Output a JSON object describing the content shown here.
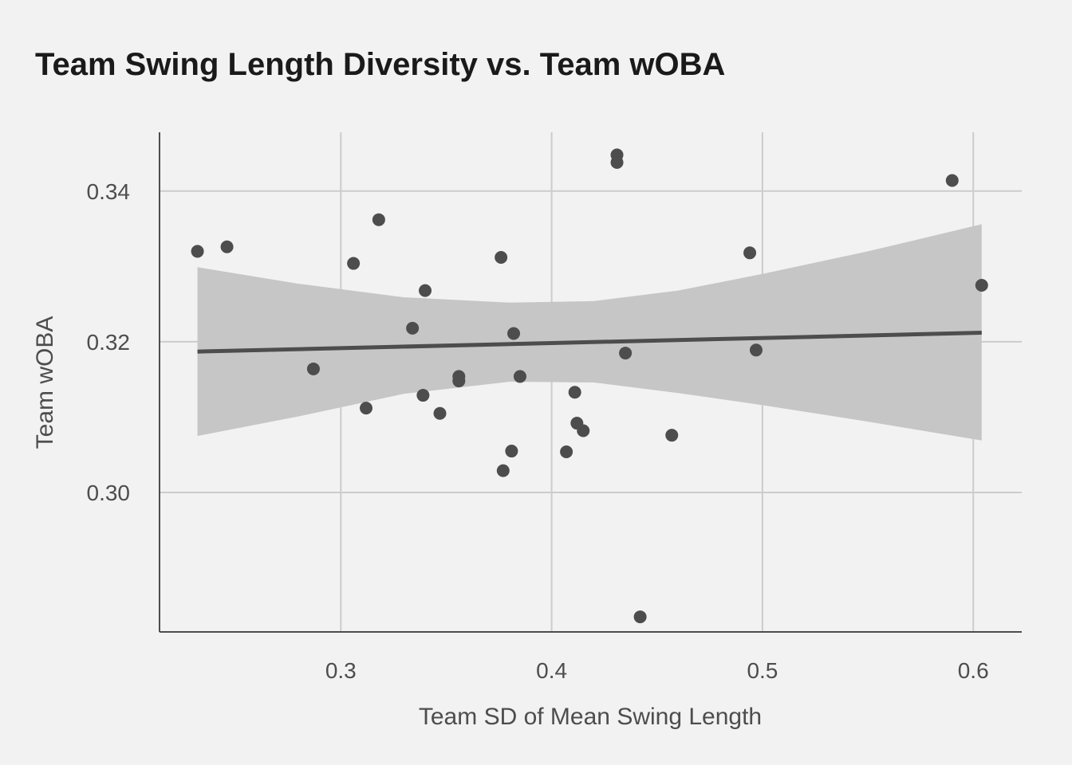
{
  "chart_data": {
    "type": "scatter",
    "title": "Team Swing Length Diversity vs. Team wOBA",
    "xlabel": "Team SD of Mean Swing Length",
    "ylabel": "Team wOBA",
    "xlim": [
      0.214,
      0.623
    ],
    "ylim": [
      0.2815,
      0.3478
    ],
    "x_ticks": [
      0.3,
      0.4,
      0.5,
      0.6
    ],
    "x_tick_labels": [
      "0.3",
      "0.4",
      "0.5",
      "0.6"
    ],
    "y_ticks": [
      0.3,
      0.32,
      0.34
    ],
    "y_tick_labels": [
      "0.30",
      "0.32",
      "0.34"
    ],
    "grid": true,
    "points": [
      {
        "x": 0.232,
        "y": 0.332
      },
      {
        "x": 0.246,
        "y": 0.3326
      },
      {
        "x": 0.287,
        "y": 0.3164
      },
      {
        "x": 0.306,
        "y": 0.3304
      },
      {
        "x": 0.312,
        "y": 0.3112
      },
      {
        "x": 0.318,
        "y": 0.3362
      },
      {
        "x": 0.334,
        "y": 0.3218
      },
      {
        "x": 0.339,
        "y": 0.3129
      },
      {
        "x": 0.34,
        "y": 0.3268
      },
      {
        "x": 0.347,
        "y": 0.3105
      },
      {
        "x": 0.356,
        "y": 0.3154
      },
      {
        "x": 0.356,
        "y": 0.3148
      },
      {
        "x": 0.376,
        "y": 0.3312
      },
      {
        "x": 0.377,
        "y": 0.3029
      },
      {
        "x": 0.381,
        "y": 0.3055
      },
      {
        "x": 0.382,
        "y": 0.3211
      },
      {
        "x": 0.385,
        "y": 0.3154
      },
      {
        "x": 0.407,
        "y": 0.3054
      },
      {
        "x": 0.411,
        "y": 0.3133
      },
      {
        "x": 0.412,
        "y": 0.3092
      },
      {
        "x": 0.415,
        "y": 0.3082
      },
      {
        "x": 0.431,
        "y": 0.3448
      },
      {
        "x": 0.431,
        "y": 0.3438
      },
      {
        "x": 0.435,
        "y": 0.3185
      },
      {
        "x": 0.442,
        "y": 0.2835
      },
      {
        "x": 0.457,
        "y": 0.3076
      },
      {
        "x": 0.494,
        "y": 0.3318
      },
      {
        "x": 0.497,
        "y": 0.3189
      },
      {
        "x": 0.59,
        "y": 0.3414
      },
      {
        "x": 0.604,
        "y": 0.3275
      }
    ],
    "trend_line": {
      "x": [
        0.232,
        0.604
      ],
      "y": [
        0.3187,
        0.3212
      ]
    },
    "confidence_band": {
      "x": [
        0.232,
        0.28,
        0.33,
        0.38,
        0.42,
        0.46,
        0.5,
        0.55,
        0.604
      ],
      "lower": [
        0.3075,
        0.3101,
        0.3131,
        0.3147,
        0.3146,
        0.3132,
        0.3116,
        0.3094,
        0.3069
      ],
      "upper": [
        0.3299,
        0.3277,
        0.3259,
        0.3252,
        0.3254,
        0.3268,
        0.329,
        0.332,
        0.3356
      ]
    },
    "colors": {
      "background": "#f2f2f2",
      "points": "#4d4d4d",
      "trend": "#4d4d4d",
      "band": "#c6c6c6",
      "grid": "#cccccc"
    }
  }
}
